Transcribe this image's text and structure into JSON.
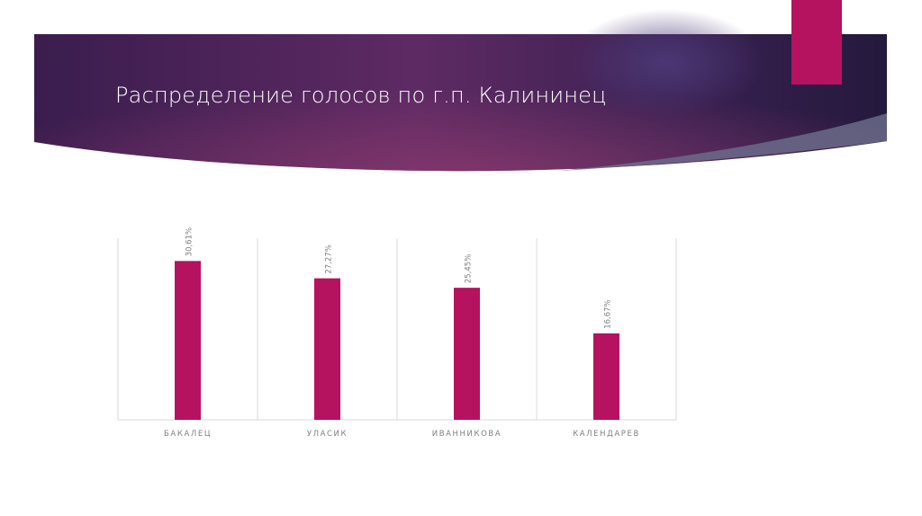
{
  "slide": {
    "title": "Распределение голосов по г.п. Калининец"
  },
  "colors": {
    "banner_dark": "#2a1a45",
    "banner_mid": "#5e2a64",
    "banner_glow": "#7a3468",
    "accent": "#b5135f",
    "bar": "#b5135f",
    "grid": "#d9d9d9",
    "label": "#7f7f7f"
  },
  "chart_data": {
    "type": "bar",
    "categories": [
      "БАКАЛЕЦ",
      "УЛАСИК",
      "ИВАННИКОВА",
      "КАЛЕНДАРЕВ"
    ],
    "values": [
      30.61,
      27.27,
      25.45,
      16.67
    ],
    "data_labels": [
      "30,61%",
      "27,27%",
      "25,45%",
      "16,67%"
    ],
    "ylim": [
      0,
      35
    ],
    "grid": "vertical-category-separators",
    "legend": "none"
  }
}
